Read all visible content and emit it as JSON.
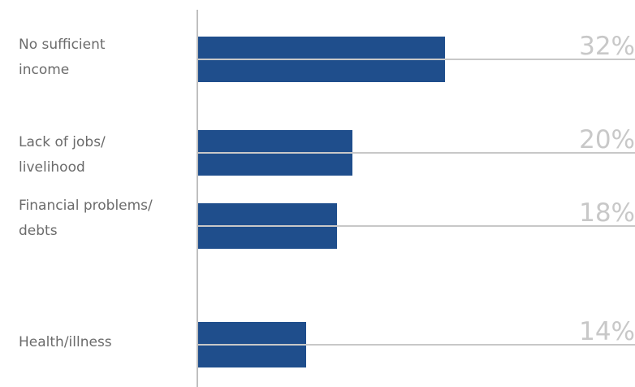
{
  "chart_data": {
    "type": "bar",
    "orientation": "horizontal",
    "categories": [
      "No sufficient\nincome",
      "Lack of jobs/\nlivelihood",
      "Financial problems/\ndebts",
      "Health/illness"
    ],
    "values": [
      32,
      20,
      18,
      14
    ],
    "value_labels": [
      "32%",
      "20%",
      "18%",
      "14%"
    ],
    "xlim": [
      0,
      32
    ],
    "grid": false,
    "legend": "none"
  },
  "colors": {
    "bar": "#1f4e8c",
    "guide_line": "#c8c8c8",
    "axis": "#bfbfbf",
    "category_text": "#6b6b6b",
    "value_text": "#c8c8c8"
  }
}
